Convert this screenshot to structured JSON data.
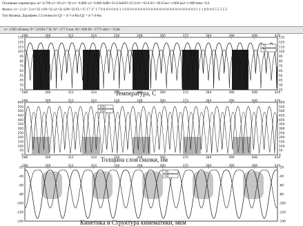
{
  "header": {
    "line1": "Основные параметры: m= 6.700 z1=30  z2= 30  x1= 0.000 x2= 0.000 AHb=25.0 A8SN=25.0 b1= 62.0 b2= 60.0 ha1=1.000 ha2=1.000 beta= 0.0",
    "line2": "Флаги:  c1= 2 c2= 2 z1=32 z1N=32 z2=32 z2N=32 FL=17 17 17 1 7 0 0 0 0 0 0 0 1 1 0 0 0 0 0 0 0 0 0 0 0 0 0 0 0 0 0 0 0 0 0 0 0 0 0 0 0 1 1 1 0 0 0 0 5 5 5 5 5",
    "line3": "Тип Фланка: Дорофеев.  Ст.точности Q1 = 4-7-4-Ha Q2 = 4-7-4-Ha"
  },
  "status": {
    "text": "n= 1200 об/мин; P=   32936.7  H, W=    377.0   кат. fb=  600  fb=  2773 мб/с=    5546"
  },
  "charts": [
    {
      "name": "temperature",
      "title": "Температура, С",
      "x_ticks": [
        "288",
        "300",
        "312",
        "324",
        "336",
        "348",
        "360",
        "372",
        "384",
        "396",
        "408",
        "420"
      ],
      "y_ticks": [
        "135",
        "125",
        "115",
        "105",
        "95",
        "85",
        "75",
        "65",
        "55",
        "45",
        "35",
        "25"
      ],
      "legend": [
        "T1",
        "T2"
      ],
      "color_accent": "#222222"
    },
    {
      "name": "oil-film-thickness",
      "title": "Толщина слоя смазки, нм",
      "x_ticks": [
        "288",
        "300",
        "312",
        "324",
        "336",
        "348",
        "360",
        "372",
        "384",
        "396",
        "408",
        "420"
      ],
      "y_ticks": [
        "600",
        "550",
        "500",
        "450",
        "400",
        "350",
        "300",
        "250",
        "200",
        "150",
        "100",
        "50",
        "0"
      ],
      "legend": [
        "h(1)",
        "h(2)"
      ],
      "color_accent": "#999999"
    },
    {
      "name": "kinematics",
      "title": "Кинетика и Структура кинематики, мкм",
      "x_ticks": [
        "288",
        "300",
        "312",
        "324",
        "336",
        "348",
        "360",
        "372",
        "384",
        "396",
        "408",
        "420"
      ],
      "y_ticks": [
        "-20",
        "-40",
        "-60",
        "-80",
        "-100",
        "-120",
        "-140"
      ],
      "legend": [
        "V1",
        "V2"
      ],
      "color_accent": "#aaaaaa"
    }
  ]
}
